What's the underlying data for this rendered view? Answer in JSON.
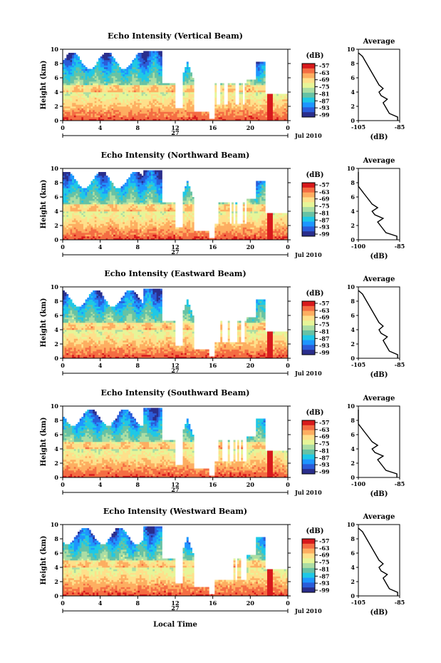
{
  "common": {
    "x_ticks": [
      "0",
      "4",
      "8",
      "12",
      "16",
      "20",
      "0"
    ],
    "y_ticks": [
      "0",
      "2",
      "4",
      "6",
      "8",
      "10"
    ],
    "date_day": "27",
    "date_month_year": "Jul 2010",
    "ylabel": "Height (km)",
    "colorbar_unit": "(dB)",
    "colorbar_ticks": [
      "-57",
      "-63",
      "-69",
      "-75",
      "-81",
      "-87",
      "-93",
      "-99"
    ],
    "colorbar_colors": [
      "#d7191c",
      "#f46d43",
      "#fdae61",
      "#fee08b",
      "#e6f598",
      "#abdda4",
      "#66c2a5",
      "#1ec8e6",
      "#1e96ff",
      "#2b5cd9",
      "#2a2e8c"
    ],
    "avg_title": "Average",
    "avg_xlabel": "(dB)",
    "xlabel": "Local Time"
  },
  "panels": [
    {
      "title": "Echo Intensity (Vertical Beam)",
      "avg_xticks": [
        "-105",
        "-85"
      ]
    },
    {
      "title": "Echo Intensity (Northward Beam)",
      "avg_xticks": [
        "-100",
        "-85"
      ]
    },
    {
      "title": "Echo Intensity (Eastward Beam)",
      "avg_xticks": [
        "-105",
        "-85"
      ]
    },
    {
      "title": "Echo Intensity (Southward Beam)",
      "avg_xticks": [
        "-100",
        "-85"
      ]
    },
    {
      "title": "Echo Intensity (Westward Beam)",
      "avg_xticks": [
        "-105",
        "-85"
      ]
    }
  ],
  "chart_data": {
    "type": "heatmap",
    "xlabel": "Local Time",
    "ylabel": "Height (km)",
    "xlim": [
      0,
      24
    ],
    "ylim": [
      0,
      10
    ],
    "colorbar_range_db": [
      -99,
      -57
    ],
    "average_profile": {
      "type": "line",
      "height_km": [
        0,
        0.5,
        1,
        1.5,
        2,
        2.5,
        3,
        3.5,
        4,
        4.5,
        5,
        5.5,
        6,
        6.5,
        7,
        7.5,
        8,
        8.5,
        9,
        9.5
      ],
      "intensity_db": [
        -86,
        -86,
        -90,
        -91,
        -92,
        -93,
        -91,
        -94,
        -95,
        -93,
        -95,
        -96,
        -97,
        -98,
        -99,
        -100,
        -101,
        -102,
        -103,
        -105
      ]
    }
  }
}
